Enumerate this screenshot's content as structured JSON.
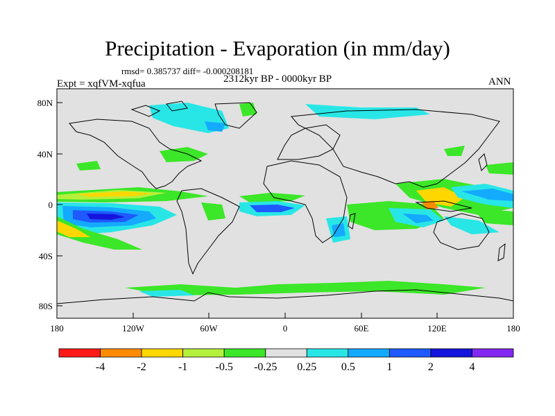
{
  "title": "Precipitation - Evaporation (in mm/day)",
  "stats_line": "rmsd= 0.385737  diff= -0.000208181",
  "period": "2312kyr BP - 0000kyr BP",
  "experiment": "Expt = xqfVM-xqfua",
  "season": "ANN",
  "axes": {
    "x_ticks": [
      "180",
      "120W",
      "60W",
      "0",
      "60E",
      "120E",
      "180"
    ],
    "y_ticks": [
      "80N",
      "40N",
      "0",
      "40S",
      "80S"
    ]
  },
  "colorbar": {
    "labels": [
      "-4",
      "-2",
      "-1",
      "-0.5",
      "-0.25",
      "0.25",
      "0.5",
      "1",
      "2",
      "4"
    ],
    "colors": [
      "#ff1a1a",
      "#ff8c00",
      "#ffd700",
      "#b4f03c",
      "#3ce628",
      "#e1e1e1",
      "#28e6e6",
      "#14aaff",
      "#1e5aff",
      "#1414dc",
      "#8228f0"
    ]
  },
  "palette": {
    "ocean": "#e1e1e1",
    "coast": "#000000"
  }
}
